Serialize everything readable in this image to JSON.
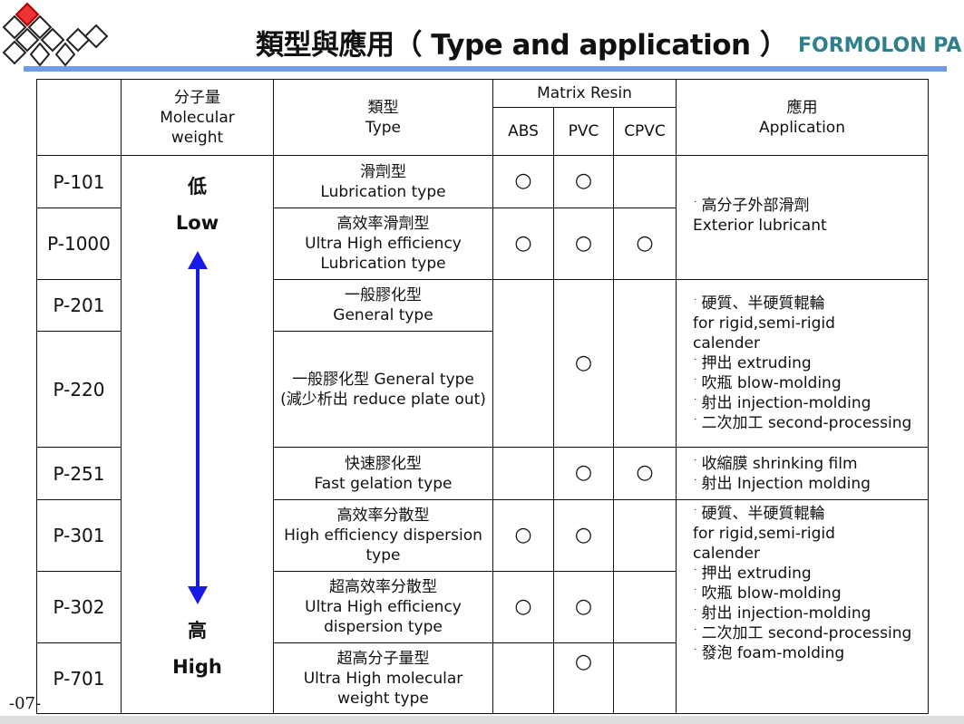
{
  "header": {
    "title": "類型與應用（ Type and application ）",
    "brand": "FORMOLON PA",
    "accent_color": "#6f9be8",
    "brand_color": "#2f7f8c"
  },
  "table": {
    "headers": {
      "mw_zh": "分子量",
      "mw_en1": "Molecular",
      "mw_en2": "weight",
      "type_zh": "類型",
      "type_en": "Type",
      "matrix": "Matrix Resin",
      "abs": "ABS",
      "pvc": "PVC",
      "cpvc": "CPVC",
      "app_zh": "應用",
      "app_en": "Application"
    },
    "scale": {
      "low_zh": "低",
      "low_en": "Low",
      "high_zh": "高",
      "high_en": "High",
      "arrow_color": "#1a1ae6"
    },
    "mark": "○",
    "rows": [
      {
        "id": "P-101",
        "type": [
          "滑劑型",
          "Lubrication type"
        ],
        "abs": true,
        "pvc": true,
        "cpvc": false
      },
      {
        "id": "P-1000",
        "type": [
          "高效率滑劑型",
          "Ultra High efficiency",
          "Lubrication type"
        ],
        "abs": true,
        "pvc": true,
        "cpvc": true
      },
      {
        "id": "P-201",
        "type": [
          "一般膠化型",
          "General type"
        ]
      },
      {
        "id": "P-220",
        "type": [
          "一般膠化型 General type",
          "(減少析出 reduce plate out)"
        ]
      },
      {
        "id": "P-251",
        "type": [
          "快速膠化型",
          "Fast gelation type"
        ],
        "abs": false,
        "pvc": true,
        "cpvc": true
      },
      {
        "id": "P-301",
        "type": [
          "高效率分散型",
          "High efficiency dispersion",
          "type"
        ],
        "abs": true,
        "pvc": true,
        "cpvc": false
      },
      {
        "id": "P-302",
        "type": [
          "超高效率分散型",
          "Ultra High efficiency",
          "dispersion type"
        ],
        "abs": true,
        "pvc": true,
        "cpvc": false
      },
      {
        "id": "P-701",
        "type": [
          "超高分子量型",
          "Ultra High molecular",
          "weight type"
        ],
        "abs": false,
        "pvc": true,
        "cpvc": false
      }
    ],
    "applications": [
      {
        "rows": "P-101,P-1000",
        "lines": [
          "高分子外部滑劑",
          "Exterior lubricant"
        ]
      },
      {
        "rows": "P-201,P-220",
        "lines": [
          "硬質、半硬質輥輪",
          "for rigid,semi-rigid",
          "calender",
          "押出 extruding",
          "吹瓶 blow-molding",
          "射出 injection-molding",
          "二次加工 second-processing"
        ]
      },
      {
        "rows": "P-251",
        "lines": [
          "收縮膜  shrinking film",
          "射出  Injection molding"
        ]
      },
      {
        "rows": "P-301,P-302,P-701",
        "lines": [
          "硬質、半硬質輥輪",
          "for rigid,semi-rigid",
          "calender",
          "押出 extruding",
          "吹瓶 blow-molding",
          "射出 injection-molding",
          "二次加工 second-processing",
          "發泡 foam-molding"
        ]
      }
    ]
  },
  "footer": {
    "page": "-07-"
  }
}
